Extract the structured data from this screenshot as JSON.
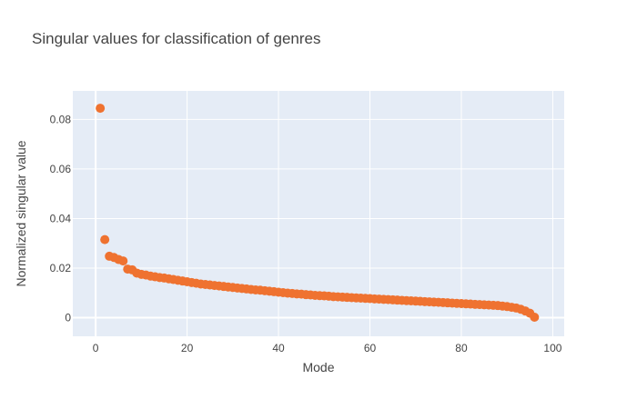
{
  "chart_data": {
    "type": "scatter",
    "title": "Singular values for classification of genres",
    "xlabel": "Mode",
    "ylabel": "Normalized singular value",
    "xlim": [
      -5,
      102.5
    ],
    "ylim": [
      -0.0075,
      0.0915
    ],
    "xticks": [
      0,
      20,
      40,
      60,
      80,
      100
    ],
    "yticks": [
      0,
      0.02,
      0.04,
      0.06,
      0.08
    ],
    "xtick_labels": [
      "0",
      "20",
      "40",
      "60",
      "80",
      "100"
    ],
    "ytick_labels": [
      "0",
      "0.02",
      "0.04",
      "0.06",
      "0.08"
    ],
    "grid": true,
    "marker_color": "#EF7230",
    "plot_bg": "#E5ECF6",
    "grid_color": "#ffffff",
    "series": [
      {
        "x": [
          1,
          2,
          3,
          4,
          5,
          6,
          7,
          8,
          9,
          10,
          11,
          12,
          13,
          14,
          15,
          16,
          17,
          18,
          19,
          20,
          21,
          22,
          23,
          24,
          25,
          26,
          27,
          28,
          29,
          30,
          31,
          32,
          33,
          34,
          35,
          36,
          37,
          38,
          39,
          40,
          41,
          42,
          43,
          44,
          45,
          46,
          47,
          48,
          49,
          50,
          51,
          52,
          53,
          54,
          55,
          56,
          57,
          58,
          59,
          60,
          61,
          62,
          63,
          64,
          65,
          66,
          67,
          68,
          69,
          70,
          71,
          72,
          73,
          74,
          75,
          76,
          77,
          78,
          79,
          80,
          81,
          82,
          83,
          84,
          85,
          86,
          87,
          88,
          89,
          90,
          91,
          92,
          93,
          94,
          95,
          96
        ],
        "y": [
          0.0845,
          0.0315,
          0.0248,
          0.0243,
          0.0235,
          0.0229,
          0.0196,
          0.0193,
          0.018,
          0.0175,
          0.0172,
          0.0168,
          0.0165,
          0.0162,
          0.016,
          0.0157,
          0.0154,
          0.0151,
          0.0148,
          0.0145,
          0.0142,
          0.0139,
          0.0136,
          0.0134,
          0.0132,
          0.013,
          0.0128,
          0.0126,
          0.0124,
          0.0122,
          0.012,
          0.0118,
          0.0116,
          0.0114,
          0.0112,
          0.0111,
          0.0109,
          0.0107,
          0.0105,
          0.0103,
          0.0101,
          0.0099,
          0.0098,
          0.0096,
          0.0095,
          0.0093,
          0.0092,
          0.009,
          0.0089,
          0.0088,
          0.0087,
          0.0085,
          0.0084,
          0.0083,
          0.0082,
          0.0081,
          0.008,
          0.0079,
          0.0078,
          0.0077,
          0.0076,
          0.0075,
          0.0074,
          0.0073,
          0.0072,
          0.0071,
          0.007,
          0.0069,
          0.0068,
          0.0067,
          0.0066,
          0.0065,
          0.0064,
          0.0063,
          0.0062,
          0.0061,
          0.006,
          0.0059,
          0.0058,
          0.0057,
          0.0056,
          0.0055,
          0.0054,
          0.0053,
          0.0052,
          0.0051,
          0.005,
          0.0049,
          0.0047,
          0.0045,
          0.0042,
          0.0039,
          0.0034,
          0.0027,
          0.0018,
          0.0002
        ]
      }
    ]
  }
}
